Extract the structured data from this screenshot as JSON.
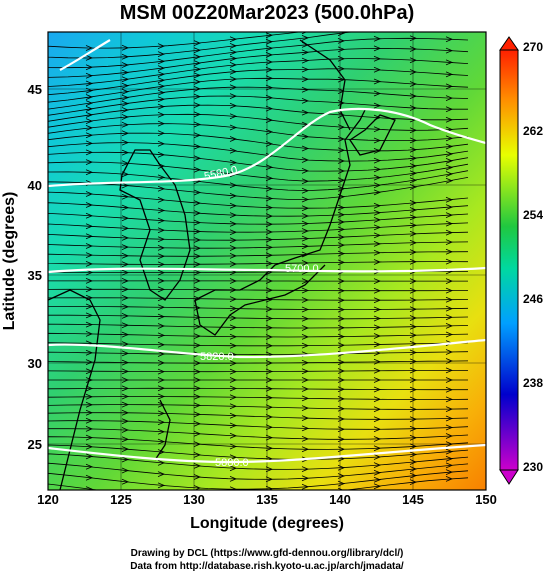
{
  "title": "MSM 00Z20Mar2023 (500.0hPa)",
  "x_axis": {
    "label": "Longitude (degrees)",
    "range": [
      120,
      150
    ],
    "ticks": [
      "120",
      "125",
      "130",
      "135",
      "140",
      "145",
      "150"
    ]
  },
  "y_axis": {
    "label": "Latitude  (degrees)",
    "range": [
      22.4,
      47.6
    ],
    "ticks": [
      "25",
      "30",
      "35",
      "40",
      "45"
    ]
  },
  "colorbar": {
    "range": [
      230,
      270
    ],
    "ticks": [
      "230",
      "238",
      "246",
      "254",
      "262",
      "270"
    ],
    "stops": [
      "#cc00cc",
      "#0000cc",
      "#00a0ff",
      "#00d8a0",
      "#20c840",
      "#e8ff00",
      "#ff9000",
      "#ff2000"
    ]
  },
  "contours": {
    "labels": [
      "5580.0",
      "5700.0",
      "5820.0",
      "5880.0"
    ],
    "latitudes": [
      40,
      35,
      30,
      25
    ]
  },
  "footer": {
    "line1": "Drawing by DCL (https://www.gfd-dennou.org/library/dcl/)",
    "line2": "Data from http://database.rish.kyoto-u.ac.jp/arch/jmadata/"
  }
}
